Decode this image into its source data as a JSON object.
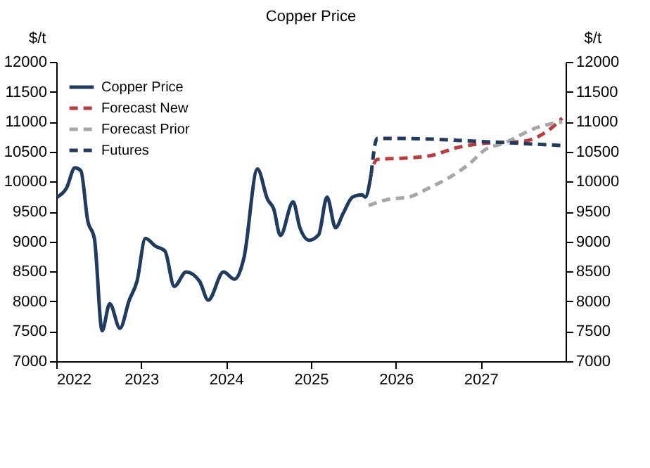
{
  "chart_data": {
    "type": "line",
    "title": "Copper Price",
    "ylabel": "$/t",
    "y2label": "$/t",
    "xlim": [
      2022,
      2028
    ],
    "xticks": [
      2022,
      2023,
      2024,
      2025,
      2026,
      2027
    ],
    "ylim": [
      7000,
      12000
    ],
    "yticks": [
      7000,
      7500,
      8000,
      8500,
      9000,
      9500,
      10000,
      10500,
      11000,
      11500,
      12000
    ],
    "y2lim": [
      7000,
      12000
    ],
    "y2ticks": [
      7000,
      7500,
      8000,
      8500,
      9000,
      9500,
      10000,
      10500,
      11000,
      11500,
      12000
    ],
    "grid": false,
    "legend": "top left",
    "marker": "none",
    "series": [
      {
        "name": "Copper Price",
        "color": "#1f3b5f",
        "line_style": "solid",
        "x": [
          2022.01,
          2022.12,
          2022.22,
          2022.29,
          2022.37,
          2022.45,
          2022.54,
          2022.63,
          2022.75,
          2022.86,
          2022.95,
          2023.05,
          2023.17,
          2023.28,
          2023.39,
          2023.53,
          2023.69,
          2023.79,
          2023.97,
          2024.1,
          2024.21,
          2024.37,
          2024.49,
          2024.56,
          2024.64,
          2024.79,
          2024.87,
          2024.98,
          2025.09,
          2025.19,
          2025.29,
          2025.38,
          2025.49,
          2025.6,
          2025.64,
          2025.71
        ],
        "values": [
          9740,
          9890,
          10230,
          10180,
          9350,
          9040,
          7510,
          7960,
          7550,
          8020,
          8330,
          9050,
          8920,
          8840,
          8250,
          8490,
          8330,
          8020,
          8490,
          8370,
          8720,
          10210,
          9700,
          9550,
          9100,
          9660,
          9230,
          9020,
          9110,
          9740,
          9230,
          9470,
          9740,
          9780,
          9740,
          10130
        ]
      },
      {
        "name": "Forecast New",
        "color": "#c0393b",
        "line_style": "dashed",
        "x": [
          2025.74,
          2025.78,
          2026.07,
          2026.4,
          2026.73,
          2027.05,
          2027.49,
          2027.82,
          2027.96
        ],
        "values": [
          10290,
          10370,
          10390,
          10430,
          10570,
          10640,
          10670,
          10880,
          11060
        ]
      },
      {
        "name": "Forecast Prior",
        "color": "#a6a6a6",
        "line_style": "dashed",
        "x": [
          2025.68,
          2025.9,
          2026.15,
          2026.4,
          2026.62,
          2026.86,
          2027.05,
          2027.27,
          2027.66,
          2027.96
        ],
        "values": [
          9600,
          9700,
          9740,
          9900,
          10060,
          10290,
          10530,
          10640,
          10900,
          11000
        ]
      },
      {
        "name": "Futures",
        "color": "#1f3b5f",
        "line_style": "dashed",
        "x": [
          2025.71,
          2025.78,
          2026.07,
          2027.0,
          2027.98
        ],
        "values": [
          10130,
          10720,
          10720,
          10670,
          10600
        ]
      }
    ]
  }
}
